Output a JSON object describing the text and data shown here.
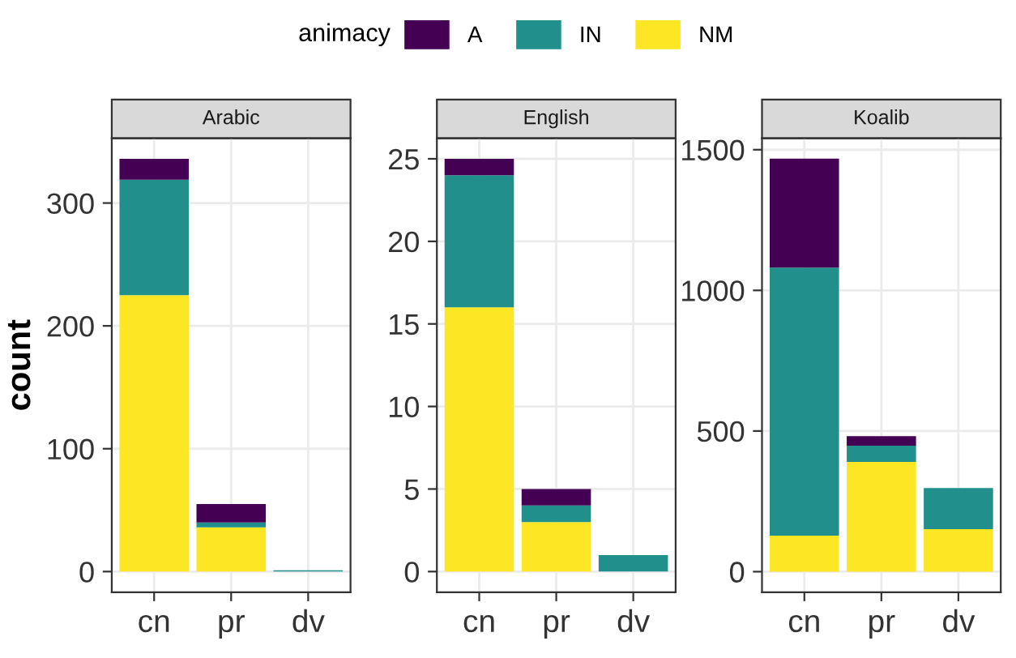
{
  "chart_data": [
    {
      "type": "bar",
      "title": "Arabic",
      "ylabel": "count",
      "legend_title": "animacy",
      "legend": "top",
      "stacked": true,
      "grid": true,
      "categories": [
        "cn",
        "pr",
        "dv"
      ],
      "ylim": [
        -16.8,
        352.8
      ],
      "yticks": [
        0,
        100,
        200,
        300
      ],
      "series": [
        {
          "name": "NM",
          "color": "#fde725",
          "values": [
            225,
            36,
            0
          ]
        },
        {
          "name": "IN",
          "color": "#21908c",
          "values": [
            94,
            4,
            1
          ]
        },
        {
          "name": "A",
          "color": "#440154",
          "values": [
            17,
            15,
            0
          ]
        }
      ]
    },
    {
      "type": "bar",
      "title": "English",
      "stacked": true,
      "grid": true,
      "categories": [
        "cn",
        "pr",
        "dv"
      ],
      "ylim": [
        -1.25,
        26.25
      ],
      "yticks": [
        0,
        5,
        10,
        15,
        20,
        25
      ],
      "series": [
        {
          "color": "#fde725",
          "values": [
            16,
            3,
            0
          ]
        },
        {
          "color": "#21908c",
          "values": [
            8,
            1,
            1
          ]
        },
        {
          "color": "#440154",
          "values": [
            1,
            1,
            0
          ]
        }
      ]
    },
    {
      "type": "bar",
      "title": "Koalib",
      "stacked": true,
      "grid": true,
      "categories": [
        "cn",
        "pr",
        "dv"
      ],
      "ylim": [
        -73,
        1541
      ],
      "yticks": [
        0,
        500,
        1000,
        1500
      ],
      "series": [
        {
          "color": "#fde725",
          "values": [
            128,
            390,
            151
          ]
        },
        {
          "color": "#21908c",
          "values": [
            953,
            58,
            146
          ]
        },
        {
          "color": "#440154",
          "values": [
            387,
            34,
            0
          ]
        }
      ]
    }
  ]
}
